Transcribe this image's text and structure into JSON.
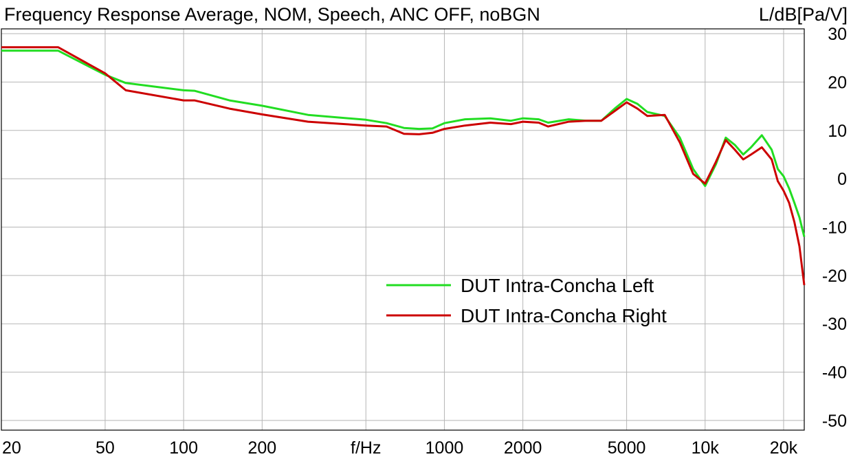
{
  "chart_data": {
    "type": "line",
    "title": "Frequency Response Average, NOM, Speech, ANC OFF, noBGN",
    "xlabel": "f/Hz",
    "ylabel": "L/dB[Pa/V]",
    "x_scale": "log",
    "xlim": [
      20,
      24000
    ],
    "ylim": [
      -52,
      31
    ],
    "grid": true,
    "legend_position": "center-right",
    "x_ticks": [
      {
        "value": 20,
        "label": "20"
      },
      {
        "value": 50,
        "label": "50"
      },
      {
        "value": 100,
        "label": "100"
      },
      {
        "value": 200,
        "label": "200"
      },
      {
        "value": 500,
        "label": "f/Hz"
      },
      {
        "value": 1000,
        "label": "1000"
      },
      {
        "value": 2000,
        "label": "2000"
      },
      {
        "value": 5000,
        "label": "5000"
      },
      {
        "value": 10000,
        "label": "10k"
      },
      {
        "value": 20000,
        "label": "20k"
      }
    ],
    "y_ticks": [
      30,
      20,
      10,
      0,
      -10,
      -20,
      -30,
      -40,
      -50
    ],
    "series": [
      {
        "name": "DUT Intra-Concha Left",
        "color": "#22dd22",
        "points": [
          [
            20,
            26.5
          ],
          [
            33,
            26.5
          ],
          [
            50,
            21.5
          ],
          [
            60,
            19.8
          ],
          [
            100,
            18.3
          ],
          [
            110,
            18.2
          ],
          [
            150,
            16.2
          ],
          [
            200,
            15.1
          ],
          [
            300,
            13.2
          ],
          [
            500,
            12.2
          ],
          [
            600,
            11.5
          ],
          [
            700,
            10.5
          ],
          [
            800,
            10.3
          ],
          [
            900,
            10.4
          ],
          [
            1000,
            11.5
          ],
          [
            1200,
            12.3
          ],
          [
            1500,
            12.5
          ],
          [
            1800,
            12.0
          ],
          [
            2000,
            12.5
          ],
          [
            2300,
            12.3
          ],
          [
            2500,
            11.6
          ],
          [
            3000,
            12.3
          ],
          [
            3500,
            12.0
          ],
          [
            4000,
            12.0
          ],
          [
            4500,
            14.5
          ],
          [
            5000,
            16.5
          ],
          [
            5500,
            15.5
          ],
          [
            6000,
            13.8
          ],
          [
            7000,
            13.0
          ],
          [
            8000,
            8.5
          ],
          [
            9000,
            2.0
          ],
          [
            10000,
            -1.5
          ],
          [
            11000,
            3.0
          ],
          [
            12000,
            8.5
          ],
          [
            13000,
            7.0
          ],
          [
            14000,
            5.0
          ],
          [
            15000,
            6.5
          ],
          [
            16500,
            9.0
          ],
          [
            18000,
            6.0
          ],
          [
            19000,
            2.0
          ],
          [
            20000,
            0.5
          ],
          [
            21000,
            -2.0
          ],
          [
            22000,
            -5.0
          ],
          [
            23000,
            -8.0
          ],
          [
            24000,
            -12.0
          ]
        ]
      },
      {
        "name": "DUT Intra-Concha Right",
        "color": "#cc0000",
        "points": [
          [
            20,
            27.2
          ],
          [
            33,
            27.2
          ],
          [
            50,
            21.8
          ],
          [
            60,
            18.3
          ],
          [
            100,
            16.2
          ],
          [
            110,
            16.2
          ],
          [
            150,
            14.5
          ],
          [
            200,
            13.3
          ],
          [
            300,
            11.8
          ],
          [
            500,
            11.0
          ],
          [
            600,
            10.8
          ],
          [
            700,
            9.3
          ],
          [
            800,
            9.2
          ],
          [
            900,
            9.5
          ],
          [
            1000,
            10.3
          ],
          [
            1200,
            11.0
          ],
          [
            1500,
            11.6
          ],
          [
            1800,
            11.3
          ],
          [
            2000,
            11.8
          ],
          [
            2300,
            11.6
          ],
          [
            2500,
            10.8
          ],
          [
            3000,
            11.8
          ],
          [
            3500,
            12.0
          ],
          [
            4000,
            12.0
          ],
          [
            4500,
            14.0
          ],
          [
            5000,
            15.8
          ],
          [
            5500,
            14.5
          ],
          [
            6000,
            13.0
          ],
          [
            7000,
            13.2
          ],
          [
            8000,
            7.5
          ],
          [
            9000,
            1.0
          ],
          [
            10000,
            -1.0
          ],
          [
            11000,
            3.5
          ],
          [
            12000,
            8.0
          ],
          [
            13000,
            6.0
          ],
          [
            14000,
            4.0
          ],
          [
            15000,
            5.0
          ],
          [
            16500,
            6.5
          ],
          [
            18000,
            4.0
          ],
          [
            19000,
            -0.5
          ],
          [
            20000,
            -2.5
          ],
          [
            21000,
            -5.0
          ],
          [
            22000,
            -9.0
          ],
          [
            23000,
            -14.0
          ],
          [
            24000,
            -22.0
          ]
        ]
      }
    ]
  }
}
